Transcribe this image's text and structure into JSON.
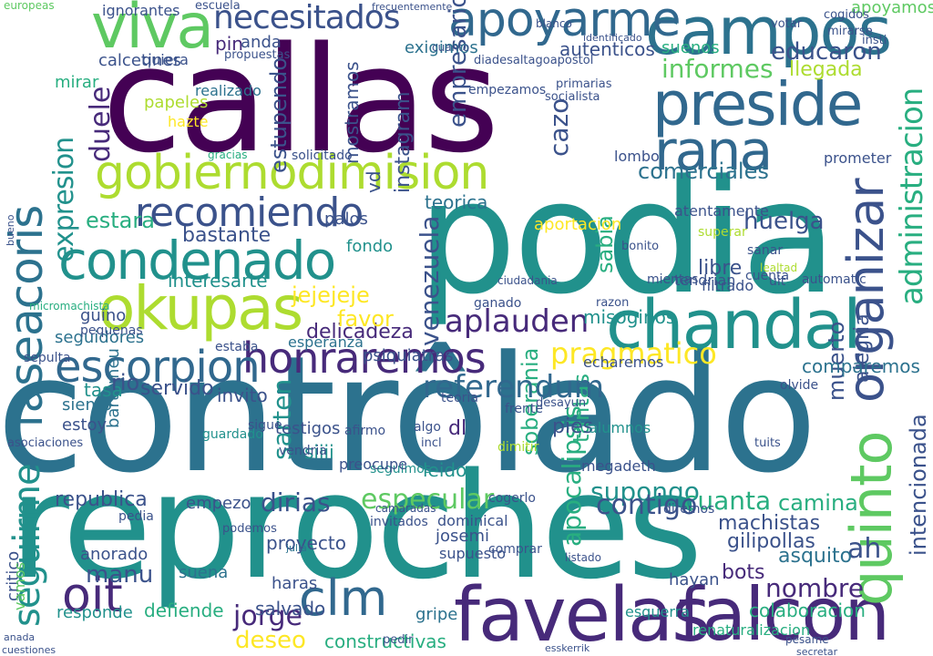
{
  "palette": {
    "purple_dark": "#440154",
    "purple": "#472a7a",
    "indigo": "#3b528b",
    "blue": "#31688e",
    "teal_blue": "#2c728e",
    "teal": "#21918c",
    "green_teal": "#28ae80",
    "green": "#5ec962",
    "lime": "#addc30",
    "yellow": "#fde725"
  },
  "words": [
    {
      "text": "contrôlado",
      "color": "teal_blue"
    },
    {
      "text": "reproches",
      "color": "teal"
    },
    {
      "text": "callas",
      "color": "purple_dark"
    },
    {
      "text": "podia",
      "color": "teal"
    },
    {
      "text": "favelas",
      "color": "purple"
    },
    {
      "text": "falcon",
      "color": "purple"
    },
    {
      "text": "campos",
      "color": "teal_blue"
    },
    {
      "text": "preside",
      "color": "blue"
    },
    {
      "text": "chandal",
      "color": "teal"
    },
    {
      "text": "okupas",
      "color": "lime"
    },
    {
      "text": "condenado",
      "color": "teal"
    },
    {
      "text": "honraremos",
      "color": "purple"
    },
    {
      "text": "escorpion",
      "color": "blue"
    },
    {
      "text": "gobiernodimision",
      "color": "lime"
    },
    {
      "text": "recomiendo",
      "color": "indigo"
    },
    {
      "text": "apoyarme",
      "color": "blue"
    },
    {
      "text": "necesitados",
      "color": "indigo"
    },
    {
      "text": "viva",
      "color": "green"
    },
    {
      "text": "faseacoris",
      "color": "teal_blue"
    },
    {
      "text": "rana",
      "color": "blue"
    },
    {
      "text": "quinto",
      "color": "green"
    },
    {
      "text": "organizar",
      "color": "indigo"
    },
    {
      "text": "administracion",
      "color": "green_teal"
    },
    {
      "text": "referendum",
      "color": "blue"
    },
    {
      "text": "pragmatico",
      "color": "yellow"
    },
    {
      "text": "aplauden",
      "color": "purple"
    },
    {
      "text": "oit",
      "color": "purple"
    },
    {
      "text": "clm",
      "color": "blue"
    },
    {
      "text": "jorge",
      "color": "purple"
    },
    {
      "text": "deseo",
      "color": "yellow"
    },
    {
      "text": "seguirme",
      "color": "teal"
    },
    {
      "text": "republica",
      "color": "indigo"
    },
    {
      "text": "dirias",
      "color": "indigo"
    },
    {
      "text": "especular",
      "color": "green"
    },
    {
      "text": "supongo",
      "color": "teal"
    },
    {
      "text": "cuanta",
      "color": "green_teal"
    },
    {
      "text": "camina",
      "color": "green_teal"
    },
    {
      "text": "huelga",
      "color": "indigo"
    },
    {
      "text": "comerciales",
      "color": "teal_blue"
    },
    {
      "text": "informes",
      "color": "green"
    },
    {
      "text": "educaron",
      "color": "indigo"
    },
    {
      "text": "llegada",
      "color": "lime"
    },
    {
      "text": "apoyamos",
      "color": "green"
    },
    {
      "text": "jejejeje",
      "color": "yellow"
    },
    {
      "text": "ah",
      "color": "indigo"
    },
    {
      "text": "nombre",
      "color": "purple"
    },
    {
      "text": "manu",
      "color": "indigo"
    },
    {
      "text": "constructivas",
      "color": "green_teal"
    },
    {
      "text": "colaboracion",
      "color": "green_teal"
    },
    {
      "text": "delicadeza",
      "color": "purple"
    },
    {
      "text": "favor",
      "color": "yellow"
    },
    {
      "text": "bastante",
      "color": "indigo"
    },
    {
      "text": "interesarte",
      "color": "teal"
    },
    {
      "text": "fondo",
      "color": "teal"
    },
    {
      "text": "libre",
      "color": "indigo"
    },
    {
      "text": "servido",
      "color": "indigo"
    },
    {
      "text": "tasa",
      "color": "teal"
    },
    {
      "text": "invito",
      "color": "indigo"
    },
    {
      "text": "seguidores",
      "color": "teal_blue"
    },
    {
      "text": "estara",
      "color": "green_teal"
    },
    {
      "text": "expresion",
      "color": "teal"
    },
    {
      "text": "pin",
      "color": "purple"
    },
    {
      "text": "anda",
      "color": "indigo"
    },
    {
      "text": "misoginos",
      "color": "teal"
    },
    {
      "text": "papeles",
      "color": "lime"
    },
    {
      "text": "realizado",
      "color": "teal_blue"
    },
    {
      "text": "duele",
      "color": "purple"
    },
    {
      "text": "bots",
      "color": "purple"
    },
    {
      "text": "asquito",
      "color": "teal_blue"
    },
    {
      "text": "salvado",
      "color": "indigo"
    },
    {
      "text": "gripe",
      "color": "teal_blue"
    },
    {
      "text": "haras",
      "color": "indigo"
    },
    {
      "text": "proyecto",
      "color": "indigo"
    },
    {
      "text": "responde",
      "color": "teal"
    },
    {
      "text": "defiende",
      "color": "green_teal"
    },
    {
      "text": "suena",
      "color": "teal_blue"
    },
    {
      "text": "leido",
      "color": "teal"
    },
    {
      "text": "testigos",
      "color": "indigo"
    },
    {
      "text": "estoy",
      "color": "indigo"
    },
    {
      "text": "siento",
      "color": "teal_blue"
    },
    {
      "text": "tantas",
      "color": "green_teal"
    },
    {
      "text": "muerto",
      "color": "indigo"
    },
    {
      "text": "comparemos",
      "color": "teal_blue"
    },
    {
      "text": "echaremos",
      "color": "indigo"
    },
    {
      "text": "machistas",
      "color": "indigo"
    },
    {
      "text": "gilipollas",
      "color": "indigo"
    },
    {
      "text": "intencionada",
      "color": "indigo"
    },
    {
      "text": "vd",
      "color": "indigo"
    },
    {
      "text": "instagram",
      "color": "indigo"
    },
    {
      "text": "empresario",
      "color": "indigo"
    },
    {
      "text": "cazo",
      "color": "indigo"
    },
    {
      "text": "autenticos",
      "color": "indigo"
    },
    {
      "text": "suenos",
      "color": "green_teal"
    },
    {
      "text": "calcetines",
      "color": "indigo"
    },
    {
      "text": "quiera",
      "color": "indigo"
    },
    {
      "text": "mirar",
      "color": "green_teal"
    },
    {
      "text": "bartomeu",
      "color": "teal_blue"
    },
    {
      "text": "exigimos",
      "color": "teal_blue"
    },
    {
      "text": "palos",
      "color": "indigo"
    },
    {
      "text": "estupendo",
      "color": "indigo"
    },
    {
      "text": "sarten",
      "color": "teal"
    },
    {
      "text": "psiquiatras",
      "color": "indigo"
    },
    {
      "text": "esperanza",
      "color": "teal_blue"
    },
    {
      "text": "venezuela",
      "color": "indigo"
    },
    {
      "text": "sabia",
      "color": "green_teal"
    },
    {
      "text": "aportacion",
      "color": "yellow"
    },
    {
      "text": "teorica",
      "color": "teal_blue"
    },
    {
      "text": "solicitado",
      "color": "indigo"
    },
    {
      "text": "guino",
      "color": "indigo"
    },
    {
      "text": "pies",
      "color": "indigo"
    },
    {
      "text": "siiii",
      "color": "teal"
    },
    {
      "text": "seguimos",
      "color": "teal"
    },
    {
      "text": "dl",
      "color": "purple"
    },
    {
      "text": "vendria",
      "color": "indigo"
    },
    {
      "text": "sigue",
      "color": "indigo"
    },
    {
      "text": "micromachista",
      "color": "green_teal"
    },
    {
      "text": "anorado",
      "color": "indigo"
    },
    {
      "text": "critico",
      "color": "indigo"
    },
    {
      "text": "ignorantes",
      "color": "indigo"
    },
    {
      "text": "escuela",
      "color": "indigo"
    },
    {
      "text": "europeas",
      "color": "green"
    },
    {
      "text": "empezo",
      "color": "indigo"
    },
    {
      "text": "apocalipsis",
      "color": "green_teal"
    },
    {
      "text": "hazte",
      "color": "yellow"
    },
    {
      "text": "gracias",
      "color": "green_teal"
    },
    {
      "text": "mostramos",
      "color": "indigo"
    },
    {
      "text": "empezamos",
      "color": "indigo"
    },
    {
      "text": "lombo",
      "color": "indigo"
    },
    {
      "text": "atentamente",
      "color": "indigo"
    },
    {
      "text": "filtrado",
      "color": "indigo"
    },
    {
      "text": "mientas",
      "color": "indigo"
    },
    {
      "text": "superar",
      "color": "lime"
    },
    {
      "text": "cuenta",
      "color": "indigo"
    },
    {
      "text": "sanar",
      "color": "indigo"
    },
    {
      "text": "uit",
      "color": "indigo"
    },
    {
      "text": "ciudadania",
      "color": "indigo"
    },
    {
      "text": "julia",
      "color": "teal_blue"
    },
    {
      "text": "teoria",
      "color": "indigo"
    },
    {
      "text": "frente",
      "color": "indigo"
    },
    {
      "text": "ganado",
      "color": "indigo"
    },
    {
      "text": "razon",
      "color": "indigo"
    },
    {
      "text": "algo",
      "color": "indigo"
    },
    {
      "text": "bonito",
      "color": "indigo"
    },
    {
      "text": "josemi",
      "color": "indigo"
    },
    {
      "text": "supuesto",
      "color": "indigo"
    },
    {
      "text": "incl",
      "color": "indigo"
    },
    {
      "text": "listado",
      "color": "indigo"
    },
    {
      "text": "desayun",
      "color": "indigo"
    },
    {
      "text": "tendrian",
      "color": "indigo"
    },
    {
      "text": "soberania",
      "color": "green_teal"
    },
    {
      "text": "alegria",
      "color": "indigo"
    },
    {
      "text": "pesame",
      "color": "indigo"
    },
    {
      "text": "hayan",
      "color": "indigo"
    },
    {
      "text": "alumnos",
      "color": "teal"
    },
    {
      "text": "megadeth",
      "color": "indigo"
    },
    {
      "text": "preocupe",
      "color": "indigo"
    },
    {
      "text": "afirmo",
      "color": "indigo"
    },
    {
      "text": "lealtad",
      "color": "lime"
    },
    {
      "text": "automatic",
      "color": "indigo"
    },
    {
      "text": "secretar",
      "color": "indigo"
    },
    {
      "text": "esquerra",
      "color": "teal"
    },
    {
      "text": "dimitir",
      "color": "lime"
    },
    {
      "text": "estaba",
      "color": "indigo"
    },
    {
      "text": "pedia",
      "color": "indigo"
    },
    {
      "text": "vamos",
      "color": "green"
    },
    {
      "text": "pequenas",
      "color": "indigo"
    },
    {
      "text": "sepulta",
      "color": "indigo"
    },
    {
      "text": "asociaciones",
      "color": "indigo"
    },
    {
      "text": "guardado",
      "color": "teal"
    },
    {
      "text": "cuanto",
      "color": "indigo"
    },
    {
      "text": "propuestas",
      "color": "indigo"
    },
    {
      "text": "podemos",
      "color": "indigo"
    },
    {
      "text": "frecuentemente",
      "color": "indigo"
    },
    {
      "text": "identificado",
      "color": "indigo"
    },
    {
      "text": "blanco",
      "color": "indigo"
    },
    {
      "text": "prometer",
      "color": "indigo"
    },
    {
      "text": "comprar",
      "color": "indigo"
    },
    {
      "text": "cogerlo",
      "color": "indigo"
    },
    {
      "text": "dominical",
      "color": "indigo"
    },
    {
      "text": "invitados",
      "color": "indigo"
    },
    {
      "text": "camaradas",
      "color": "indigo"
    },
    {
      "text": "pedir",
      "color": "indigo"
    },
    {
      "text": "contigo",
      "color": "indigo"
    },
    {
      "text": "diremos",
      "color": "indigo"
    },
    {
      "text": "rio",
      "color": "indigo"
    },
    {
      "text": "olvide",
      "color": "indigo"
    },
    {
      "text": "tuits",
      "color": "indigo"
    },
    {
      "text": "primarias",
      "color": "indigo"
    },
    {
      "text": "socialista",
      "color": "indigo"
    },
    {
      "text": "votar",
      "color": "indigo"
    },
    {
      "text": "insti",
      "color": "indigo"
    },
    {
      "text": "mirarse",
      "color": "indigo"
    },
    {
      "text": "cogidos",
      "color": "indigo"
    },
    {
      "text": "renaturalizacion",
      "color": "green_teal"
    },
    {
      "text": "esskerrik",
      "color": "indigo"
    },
    {
      "text": "cuestiones",
      "color": "indigo"
    },
    {
      "text": "anada",
      "color": "indigo"
    },
    {
      "text": "diadesaltagoapostol",
      "color": "indigo"
    },
    {
      "text": "bueno",
      "color": "indigo"
    },
    {
      "text": "pasado",
      "color": "indigo"
    }
  ]
}
